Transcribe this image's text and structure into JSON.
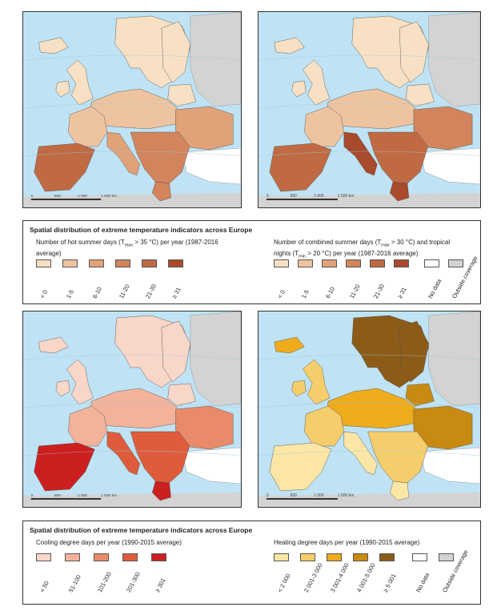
{
  "maps": [
    {
      "id": "hot-summer-days",
      "scale_labels": [
        "0",
        "500",
        "1 000",
        "1 500 km"
      ]
    },
    {
      "id": "combined-summer-tropical",
      "scale_labels": [
        "0",
        "500",
        "1 000",
        "1 500 km"
      ]
    },
    {
      "id": "cooling-degree-days",
      "scale_labels": [
        "0",
        "500",
        "1 000",
        "1 500 km"
      ]
    },
    {
      "id": "heating-degree-days",
      "scale_labels": [
        "0",
        "500",
        "1 000",
        "1 500 km"
      ]
    }
  ],
  "legend_top": {
    "title": "Spatial distribution of extreme temperature indicators across Europe",
    "left": {
      "subtitle_line1": "Number of hot summer days (T",
      "subtitle_sub": "max",
      "subtitle_rest": " > 35 °C) per year (1987-2016",
      "subtitle_line2": "average)",
      "classes": [
        {
          "label": "< 0",
          "color": "#f7e0c4"
        },
        {
          "label": "1-5",
          "color": "#eec4a0"
        },
        {
          "label": "6-10",
          "color": "#e1a27a"
        },
        {
          "label": "11-20",
          "color": "#d2845c"
        },
        {
          "label": "21-30",
          "color": "#c06a44"
        },
        {
          "label": "≥ 31",
          "color": "#a94a2c"
        }
      ]
    },
    "right": {
      "subtitle_line1": "Number of combined summer days (T",
      "subtitle_sub1": "max",
      "subtitle_rest1": " > 30 °C) and tropical",
      "subtitle_line2a": "nights (T",
      "subtitle_sub2": "min",
      "subtitle_line2b": " > 20 °C) per year (1987-2016 average)",
      "classes": [
        {
          "label": "< 0",
          "color": "#f7e0c4"
        },
        {
          "label": "1-5",
          "color": "#eec4a0"
        },
        {
          "label": "6-10",
          "color": "#e1a27a"
        },
        {
          "label": "11-20",
          "color": "#d2845c"
        },
        {
          "label": "21-30",
          "color": "#c06a44"
        },
        {
          "label": "≥ 31",
          "color": "#a94a2c"
        },
        {
          "label": "No data",
          "color": "#ffffff"
        },
        {
          "label": "Outside coverage",
          "color": "#d3d3d3"
        }
      ]
    }
  },
  "legend_bottom": {
    "title": "Spatial distribution of extreme temperature indicators across Europe",
    "left": {
      "subtitle": "Cooling degree days per year (1990-2015 average)",
      "classes": [
        {
          "label": "< 50",
          "color": "#f8d6c8"
        },
        {
          "label": "51-100",
          "color": "#f2b39a"
        },
        {
          "label": "101-200",
          "color": "#e98a6a"
        },
        {
          "label": "201-300",
          "color": "#de5c3c"
        },
        {
          "label": "≥ 301",
          "color": "#cc1f1f"
        }
      ]
    },
    "right": {
      "subtitle": "Heating degree days per year (1990-2015 average)",
      "classes": [
        {
          "label": "< 2 000",
          "color": "#fbe6a6"
        },
        {
          "label": "2 001-3 000",
          "color": "#f6cd6b"
        },
        {
          "label": "3 001-4 000",
          "color": "#eeac1d"
        },
        {
          "label": "4 001-5 000",
          "color": "#c98a12"
        },
        {
          "label": "≥ 5 001",
          "color": "#8c5b18"
        },
        {
          "label": "No data",
          "color": "#ffffff"
        },
        {
          "label": "Outside coverage",
          "color": "#d3d3d3"
        }
      ]
    }
  },
  "colors": {
    "sea": "#bfe3f4",
    "outside": "#d3d3d3",
    "border": "#555555"
  }
}
